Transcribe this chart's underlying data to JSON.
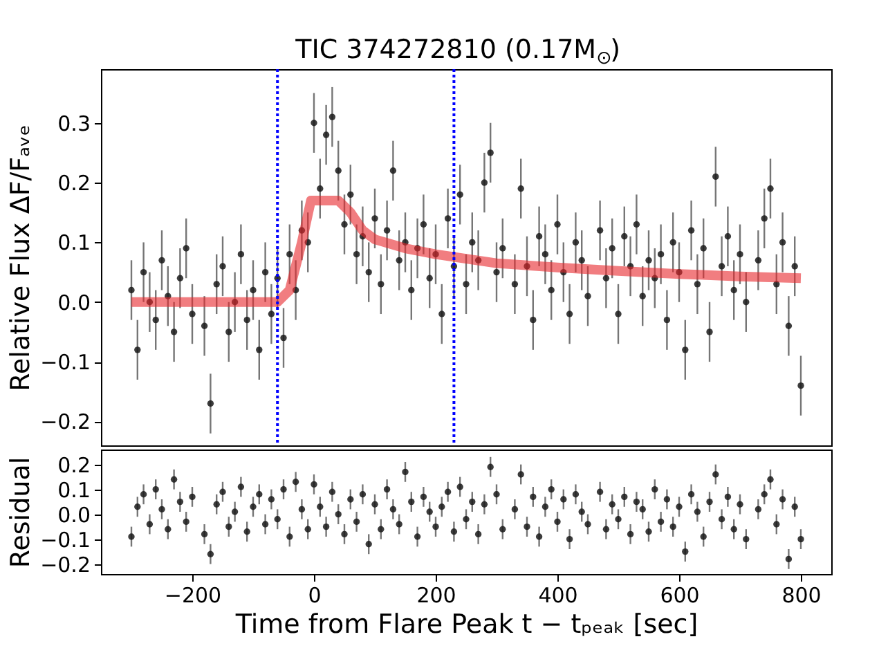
{
  "chart_data": [
    {
      "type": "scatter",
      "title": "TIC 374272810 (0.17M$_{⊙}$)",
      "ylabel": "Relative Flux  ΔF/Fₐᵥₑ",
      "xlim": [
        -350,
        850
      ],
      "ylim": [
        -0.24,
        0.39
      ],
      "yticks": [
        -0.2,
        -0.1,
        {
          "value": 0,
          "label": "0.0"
        },
        0.1,
        0.2,
        0.3
      ],
      "tick_labels": "y",
      "grid": false,
      "marker": "circle",
      "series": [
        {
          "type": "scatter",
          "color": "#1a1a1a",
          "x": [
            -300,
            -290,
            -280,
            -270,
            -260,
            -250,
            -240,
            -230,
            -220,
            -210,
            -200,
            -180,
            -170,
            -160,
            -150,
            -140,
            -130,
            -120,
            -110,
            -100,
            -90,
            -80,
            -70,
            -60,
            -50,
            -40,
            -30,
            -20,
            -10,
            0,
            10,
            20,
            30,
            40,
            50,
            60,
            70,
            80,
            90,
            100,
            110,
            120,
            130,
            140,
            150,
            160,
            170,
            180,
            190,
            200,
            210,
            220,
            230,
            240,
            250,
            260,
            270,
            280,
            290,
            300,
            310,
            330,
            340,
            350,
            360,
            370,
            380,
            390,
            400,
            410,
            420,
            430,
            440,
            450,
            470,
            480,
            490,
            500,
            510,
            520,
            530,
            540,
            550,
            560,
            570,
            580,
            590,
            600,
            610,
            620,
            630,
            640,
            650,
            660,
            670,
            680,
            690,
            700,
            710,
            730,
            740,
            750,
            760,
            770,
            780,
            790,
            800
          ],
          "values": [
            0.02,
            -0.08,
            0.05,
            0.0,
            -0.03,
            0.07,
            0.01,
            -0.05,
            0.04,
            0.09,
            -0.02,
            -0.04,
            -0.17,
            0.03,
            0.06,
            -0.05,
            0.0,
            0.08,
            -0.03,
            0.02,
            -0.08,
            0.05,
            -0.02,
            0.04,
            -0.06,
            0.08,
            0.02,
            0.12,
            0.1,
            0.3,
            0.19,
            0.28,
            0.31,
            0.22,
            0.13,
            0.18,
            0.08,
            0.11,
            0.05,
            0.14,
            0.03,
            0.12,
            0.22,
            0.07,
            0.1,
            0.02,
            0.09,
            0.13,
            0.04,
            0.08,
            -0.02,
            0.14,
            0.06,
            0.18,
            0.03,
            0.1,
            0.07,
            0.2,
            0.25,
            0.05,
            0.09,
            0.03,
            0.19,
            0.06,
            -0.03,
            0.11,
            0.08,
            0.02,
            0.13,
            0.05,
            -0.02,
            0.1,
            0.07,
            0.01,
            0.12,
            0.04,
            0.09,
            -0.02,
            0.11,
            0.06,
            0.13,
            0.01,
            0.07,
            0.04,
            0.08,
            -0.03,
            0.1,
            0.05,
            -0.08,
            0.12,
            0.03,
            0.09,
            -0.05,
            0.21,
            0.06,
            0.11,
            0.02,
            0.08,
            0.0,
            0.07,
            0.14,
            0.19,
            0.03,
            0.1,
            -0.04,
            0.06,
            -0.14
          ],
          "errors": [
            0.05,
            0.05,
            0.05,
            0.05,
            0.05,
            0.05,
            0.05,
            0.05,
            0.05,
            0.05,
            0.05,
            0.05,
            0.05,
            0.05,
            0.05,
            0.05,
            0.05,
            0.05,
            0.05,
            0.05,
            0.05,
            0.05,
            0.05,
            0.05,
            0.05,
            0.05,
            0.05,
            0.05,
            0.05,
            0.05,
            0.05,
            0.05,
            0.05,
            0.05,
            0.05,
            0.05,
            0.05,
            0.05,
            0.05,
            0.05,
            0.05,
            0.05,
            0.05,
            0.05,
            0.05,
            0.05,
            0.05,
            0.05,
            0.05,
            0.05,
            0.05,
            0.05,
            0.05,
            0.05,
            0.05,
            0.05,
            0.05,
            0.05,
            0.05,
            0.05,
            0.05,
            0.05,
            0.05,
            0.05,
            0.05,
            0.05,
            0.05,
            0.05,
            0.05,
            0.05,
            0.05,
            0.05,
            0.05,
            0.05,
            0.05,
            0.05,
            0.05,
            0.05,
            0.05,
            0.05,
            0.05,
            0.05,
            0.05,
            0.05,
            0.05,
            0.05,
            0.05,
            0.05,
            0.05,
            0.05,
            0.05,
            0.05,
            0.05,
            0.05,
            0.05,
            0.05,
            0.05,
            0.05,
            0.05,
            0.05,
            0.05,
            0.05,
            0.05,
            0.05,
            0.05,
            0.05,
            0.05
          ]
        },
        {
          "type": "line",
          "marker": "none",
          "color": "#e8262b",
          "x": [
            -300,
            -60,
            -40,
            -20,
            -5,
            40,
            60,
            80,
            100,
            150,
            200,
            300,
            400,
            500,
            600,
            700,
            800
          ],
          "values": [
            0.0,
            0.0,
            0.02,
            0.1,
            0.17,
            0.17,
            0.15,
            0.12,
            0.105,
            0.09,
            0.08,
            0.065,
            0.058,
            0.052,
            0.047,
            0.043,
            0.04
          ]
        }
      ],
      "ref_lines": [
        {
          "axis": "x",
          "value": -60,
          "color": "#0000ff",
          "line_style": "dotted"
        },
        {
          "axis": "x",
          "value": 230,
          "color": "#0000ff",
          "line_style": "dotted"
        }
      ]
    },
    {
      "type": "scatter",
      "xlabel": "Time from Flare Peak  t − tₚₑₐₖ [sec]",
      "ylabel": "Residual",
      "xlim": [
        -350,
        850
      ],
      "xticks": [
        -200,
        0,
        200,
        400,
        600,
        800
      ],
      "ylim": [
        -0.24,
        0.26
      ],
      "yticks": [
        -0.2,
        -0.1,
        {
          "value": 0,
          "label": "0.0"
        },
        0.1,
        0.2
      ],
      "grid": false,
      "marker": "circle",
      "color": "#1a1a1a",
      "x": [
        -300,
        -290,
        -280,
        -270,
        -260,
        -250,
        -240,
        -230,
        -220,
        -210,
        -200,
        -180,
        -170,
        -160,
        -150,
        -140,
        -130,
        -120,
        -110,
        -100,
        -90,
        -80,
        -70,
        -60,
        -50,
        -40,
        -30,
        -20,
        -10,
        0,
        10,
        20,
        30,
        40,
        50,
        60,
        70,
        80,
        90,
        100,
        110,
        120,
        130,
        140,
        150,
        160,
        170,
        180,
        190,
        200,
        210,
        220,
        230,
        240,
        250,
        260,
        270,
        280,
        290,
        300,
        310,
        330,
        340,
        350,
        360,
        370,
        380,
        390,
        400,
        410,
        420,
        430,
        440,
        450,
        470,
        480,
        490,
        500,
        510,
        520,
        530,
        540,
        550,
        560,
        570,
        580,
        590,
        600,
        610,
        620,
        630,
        640,
        650,
        660,
        670,
        680,
        690,
        700,
        710,
        730,
        740,
        750,
        760,
        770,
        780,
        790,
        800
      ],
      "values": [
        -0.09,
        0.03,
        0.08,
        -0.04,
        0.1,
        0.02,
        -0.06,
        0.14,
        0.05,
        -0.03,
        0.07,
        -0.08,
        -0.16,
        0.04,
        0.09,
        -0.05,
        0.01,
        0.11,
        -0.07,
        0.03,
        0.08,
        -0.04,
        0.06,
        -0.02,
        0.1,
        -0.09,
        0.13,
        0.02,
        -0.06,
        0.12,
        0.03,
        -0.05,
        0.09,
        0.0,
        -0.08,
        0.06,
        -0.03,
        0.08,
        -0.12,
        0.04,
        -0.06,
        0.1,
        0.02,
        -0.04,
        0.17,
        0.05,
        -0.09,
        0.07,
        0.01,
        -0.05,
        0.03,
        0.09,
        -0.07,
        0.11,
        -0.02,
        0.05,
        -0.08,
        0.04,
        0.19,
        0.08,
        -0.06,
        0.02,
        0.16,
        -0.05,
        0.07,
        -0.09,
        0.03,
        0.1,
        -0.03,
        0.06,
        -0.1,
        0.08,
        0.01,
        -0.04,
        0.09,
        -0.06,
        0.04,
        -0.02,
        0.07,
        -0.08,
        0.05,
        0.02,
        -0.07,
        0.1,
        -0.03,
        0.06,
        -0.05,
        0.03,
        -0.15,
        0.08,
        0.01,
        -0.09,
        0.05,
        0.16,
        -0.02,
        0.07,
        -0.06,
        0.04,
        -0.1,
        0.02,
        0.08,
        0.14,
        -0.04,
        0.06,
        -0.18,
        0.03,
        -0.1
      ],
      "errors": [
        0.04,
        0.04,
        0.04,
        0.04,
        0.04,
        0.04,
        0.04,
        0.04,
        0.04,
        0.04,
        0.04,
        0.04,
        0.04,
        0.04,
        0.04,
        0.04,
        0.04,
        0.04,
        0.04,
        0.04,
        0.04,
        0.04,
        0.04,
        0.04,
        0.04,
        0.04,
        0.04,
        0.04,
        0.04,
        0.04,
        0.04,
        0.04,
        0.04,
        0.04,
        0.04,
        0.04,
        0.04,
        0.04,
        0.04,
        0.04,
        0.04,
        0.04,
        0.04,
        0.04,
        0.04,
        0.04,
        0.04,
        0.04,
        0.04,
        0.04,
        0.04,
        0.04,
        0.04,
        0.04,
        0.04,
        0.04,
        0.04,
        0.04,
        0.04,
        0.04,
        0.04,
        0.04,
        0.04,
        0.04,
        0.04,
        0.04,
        0.04,
        0.04,
        0.04,
        0.04,
        0.04,
        0.04,
        0.04,
        0.04,
        0.04,
        0.04,
        0.04,
        0.04,
        0.04,
        0.04,
        0.04,
        0.04,
        0.04,
        0.04,
        0.04,
        0.04,
        0.04,
        0.04,
        0.04,
        0.04,
        0.04,
        0.04,
        0.04,
        0.04,
        0.04,
        0.04,
        0.04,
        0.04,
        0.04,
        0.04,
        0.04,
        0.04,
        0.04,
        0.04,
        0.04,
        0.04,
        0.04
      ]
    }
  ]
}
